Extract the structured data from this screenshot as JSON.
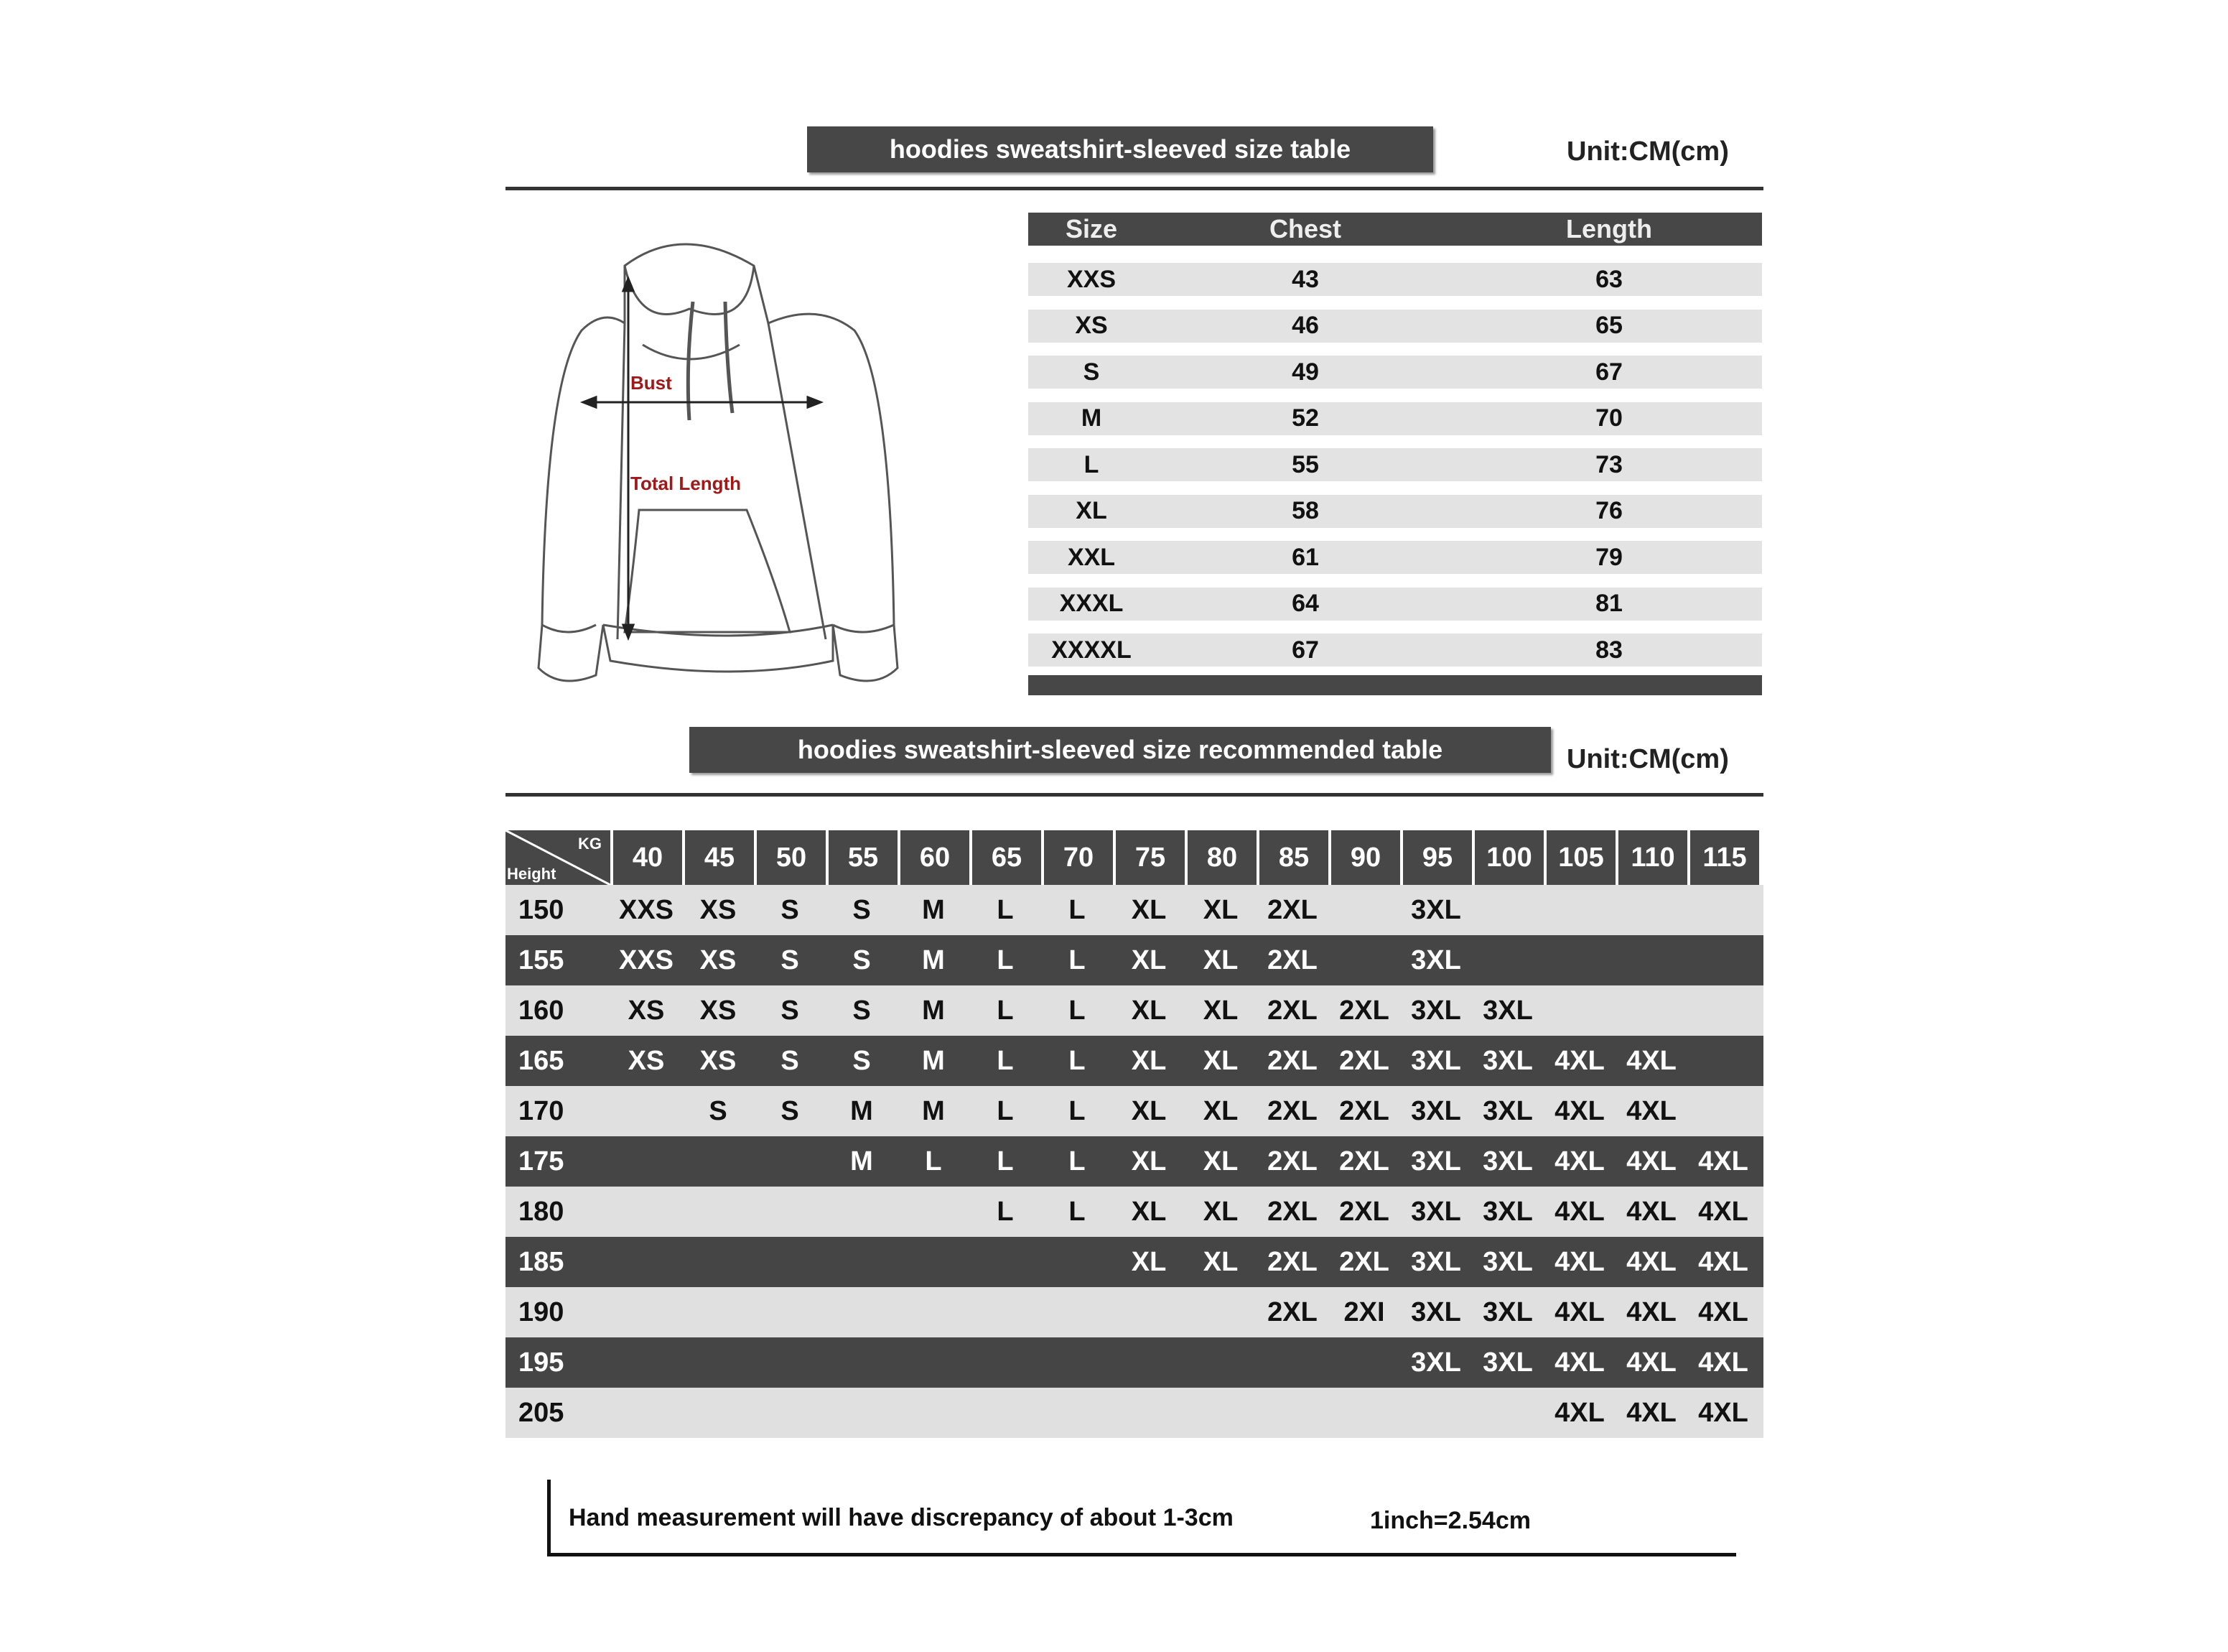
{
  "size_table": {
    "title": "hoodies sweatshirt-sleeved size  table",
    "unit": "Unit:CM(cm)",
    "headers": [
      "Size",
      "Chest",
      "Length"
    ],
    "rows": [
      [
        "XXS",
        "43",
        "63"
      ],
      [
        "XS",
        "46",
        "65"
      ],
      [
        "S",
        "49",
        "67"
      ],
      [
        "M",
        "52",
        "70"
      ],
      [
        "L",
        "55",
        "73"
      ],
      [
        "XL",
        "58",
        "76"
      ],
      [
        "XXL",
        "61",
        "79"
      ],
      [
        "XXXL",
        "64",
        "81"
      ],
      [
        "XXXXL",
        "67",
        "83"
      ]
    ]
  },
  "diagram": {
    "bust_label": "Bust",
    "length_label": "Total Length",
    "label_color": "#a01818"
  },
  "recommended_table": {
    "title": "hoodies sweatshirt-sleeved size recommended table",
    "unit": "Unit:CM(cm)",
    "corner_top": "KG",
    "corner_bottom": "Height",
    "weights": [
      "40",
      "45",
      "50",
      "55",
      "60",
      "65",
      "70",
      "75",
      "80",
      "85",
      "90",
      "95",
      "100",
      "105",
      "110",
      "115"
    ],
    "rows": [
      {
        "height": "150",
        "sizes": [
          "XXS",
          "XS",
          "S",
          "S",
          "M",
          "L",
          "L",
          "XL",
          "XL",
          "2XL",
          "",
          "3XL",
          "",
          "",
          "",
          ""
        ]
      },
      {
        "height": "155",
        "sizes": [
          "XXS",
          "XS",
          "S",
          "S",
          "M",
          "L",
          "L",
          "XL",
          "XL",
          "2XL",
          "",
          "3XL",
          "",
          "",
          "",
          ""
        ]
      },
      {
        "height": "160",
        "sizes": [
          "XS",
          "XS",
          "S",
          "S",
          "M",
          "L",
          "L",
          "XL",
          "XL",
          "2XL",
          "2XL",
          "3XL",
          "3XL",
          "",
          "",
          ""
        ]
      },
      {
        "height": "165",
        "sizes": [
          "XS",
          "XS",
          "S",
          "S",
          "M",
          "L",
          "L",
          "XL",
          "XL",
          "2XL",
          "2XL",
          "3XL",
          "3XL",
          "4XL",
          "4XL",
          ""
        ]
      },
      {
        "height": "170",
        "sizes": [
          "",
          "S",
          "S",
          "M",
          "M",
          "L",
          "L",
          "XL",
          "XL",
          "2XL",
          "2XL",
          "3XL",
          "3XL",
          "4XL",
          "4XL",
          ""
        ]
      },
      {
        "height": "175",
        "sizes": [
          "",
          "",
          "",
          "M",
          "L",
          "L",
          "L",
          "XL",
          "XL",
          "2XL",
          "2XL",
          "3XL",
          "3XL",
          "4XL",
          "4XL",
          "4XL"
        ]
      },
      {
        "height": "180",
        "sizes": [
          "",
          "",
          "",
          "",
          "",
          "L",
          "L",
          "XL",
          "XL",
          "2XL",
          "2XL",
          "3XL",
          "3XL",
          "4XL",
          "4XL",
          "4XL"
        ]
      },
      {
        "height": "185",
        "sizes": [
          "",
          "",
          "",
          "",
          "",
          "",
          "",
          "XL",
          "XL",
          "2XL",
          "2XL",
          "3XL",
          "3XL",
          "4XL",
          "4XL",
          "4XL"
        ]
      },
      {
        "height": "190",
        "sizes": [
          "",
          "",
          "",
          "",
          "",
          "",
          "",
          "",
          "",
          "2XL",
          "2XI",
          "3XL",
          "3XL",
          "4XL",
          "4XL",
          "4XL"
        ]
      },
      {
        "height": "195",
        "sizes": [
          "",
          "",
          "",
          "",
          "",
          "",
          "",
          "",
          "",
          "",
          "",
          "3XL",
          "3XL",
          "4XL",
          "4XL",
          "4XL"
        ]
      },
      {
        "height": "205",
        "sizes": [
          "",
          "",
          "",
          "",
          "",
          "",
          "",
          "",
          "",
          "",
          "",
          "",
          "",
          "4XL",
          "4XL",
          "4XL"
        ]
      }
    ]
  },
  "footer": {
    "note": "Hand measurement will have discrepancy of about  1-3cm",
    "conversion": "1inch=2.54cm"
  }
}
